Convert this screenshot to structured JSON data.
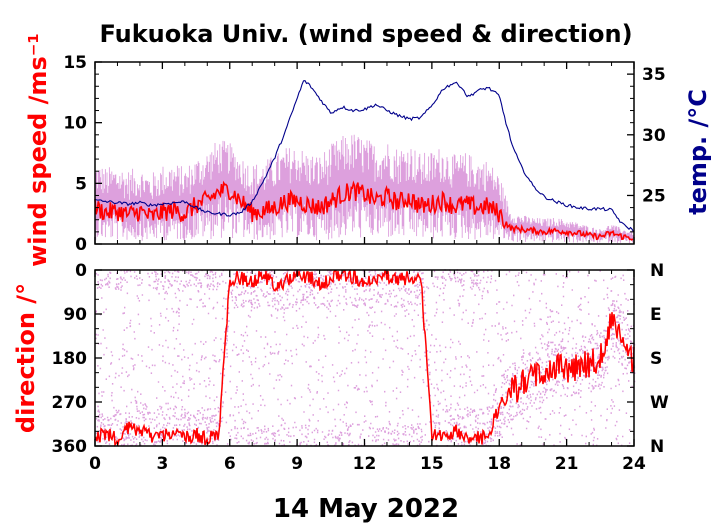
{
  "title": "Fukuoka Univ. (wind speed & direction)",
  "colors": {
    "speed": "#ff0000",
    "gust": "#dda0dd",
    "temp": "#00008b",
    "axis": "#000000"
  },
  "chart_data": [
    {
      "type": "line",
      "panel": "top",
      "ylabel": "wind speed /ms⁻¹",
      "y2label": "temp. /°C",
      "xlim": [
        0,
        24
      ],
      "ylim": [
        0,
        15
      ],
      "y2lim": [
        21,
        36
      ],
      "xticks": [
        0,
        3,
        6,
        9,
        12,
        15,
        18,
        21,
        24
      ],
      "yticks": [
        0,
        5,
        10,
        15
      ],
      "y2ticks": [
        25,
        30,
        35
      ],
      "series": [
        {
          "key": "wind_speed_mean",
          "x": [
            0,
            0.5,
            1,
            1.5,
            2,
            2.5,
            3,
            3.5,
            4,
            4.5,
            5,
            5.5,
            6,
            6.5,
            7,
            7.5,
            8,
            8.5,
            9,
            9.5,
            10,
            10.5,
            11,
            11.5,
            12,
            12.5,
            13,
            13.5,
            14,
            14.5,
            15,
            15.5,
            16,
            16.5,
            17,
            17.5,
            18,
            18.5,
            19,
            19.5,
            20,
            20.5,
            21,
            21.5,
            22,
            22.5,
            23,
            23.5,
            24
          ],
          "values": [
            3.0,
            2.6,
            2.7,
            2.4,
            2.7,
            2.2,
            2.6,
            2.8,
            2.5,
            3.2,
            3.6,
            4.3,
            4.5,
            3.5,
            2.6,
            2.7,
            3.0,
            3.5,
            3.6,
            3.2,
            3.0,
            3.5,
            4.1,
            4.4,
            4.1,
            3.6,
            3.9,
            3.4,
            3.8,
            3.1,
            3.3,
            3.6,
            3.1,
            3.3,
            3.0,
            3.1,
            2.5,
            1.3,
            1.2,
            1.1,
            1.0,
            1.1,
            1.0,
            0.9,
            0.7,
            0.6,
            0.9,
            0.6,
            0.5
          ]
        },
        {
          "key": "gust_upper",
          "x": [
            0,
            0.5,
            1,
            1.5,
            2,
            2.5,
            3,
            3.5,
            4,
            4.5,
            5,
            5.5,
            6,
            6.5,
            7,
            7.5,
            8,
            8.5,
            9,
            9.5,
            10,
            10.5,
            11,
            11.5,
            12,
            12.5,
            13,
            13.5,
            14,
            14.5,
            15,
            15.5,
            16,
            16.5,
            17,
            17.5,
            18,
            18.5,
            19,
            19.5,
            20,
            20.5,
            21,
            21.5,
            22,
            22.5,
            23,
            23.5,
            24
          ],
          "values": [
            6.5,
            6.0,
            6.2,
            5.8,
            6.0,
            5.5,
            6.2,
            6.4,
            6.0,
            6.8,
            7.4,
            8.3,
            8.0,
            7.0,
            6.3,
            6.5,
            7.0,
            7.6,
            7.8,
            7.2,
            7.0,
            7.8,
            8.5,
            8.8,
            8.4,
            7.9,
            8.2,
            7.6,
            8.0,
            7.1,
            7.3,
            7.8,
            7.0,
            7.2,
            6.8,
            6.6,
            5.5,
            2.6,
            2.3,
            2.1,
            2.0,
            2.1,
            1.9,
            1.7,
            1.4,
            1.2,
            1.6,
            1.2,
            1.0
          ]
        },
        {
          "key": "temperature",
          "axis": "y2",
          "x": [
            0,
            0.5,
            1,
            1.5,
            2,
            2.5,
            3,
            3.5,
            4,
            4.5,
            5,
            5.5,
            6,
            6.5,
            7,
            7.5,
            8,
            8.5,
            9,
            9.3,
            9.6,
            10,
            10.5,
            11,
            11.5,
            12,
            12.5,
            13,
            13.5,
            14,
            14.5,
            15,
            15.5,
            16,
            16.3,
            16.6,
            17,
            17.5,
            18,
            18.3,
            18.6,
            19,
            19.5,
            20,
            20.5,
            21,
            21.5,
            22,
            22.5,
            23,
            23.5,
            24
          ],
          "values": [
            24.6,
            24.5,
            24.4,
            24.3,
            24.4,
            24.2,
            24.3,
            24.4,
            24.5,
            24.0,
            23.6,
            23.5,
            23.4,
            23.6,
            24.5,
            26.2,
            28.1,
            30.4,
            33.0,
            34.5,
            34.0,
            33.0,
            31.8,
            32.3,
            32.0,
            32.1,
            32.5,
            32.0,
            31.6,
            31.3,
            31.4,
            32.4,
            33.8,
            34.3,
            34.0,
            33.1,
            33.6,
            33.9,
            33.2,
            31.0,
            29.0,
            27.3,
            25.8,
            24.9,
            24.5,
            24.2,
            24.0,
            23.9,
            23.9,
            23.8,
            22.6,
            22.1
          ]
        }
      ]
    },
    {
      "type": "scatter",
      "panel": "bottom",
      "ylabel": "direction /°",
      "xlabel": "14 May 2022",
      "xlim": [
        0,
        24
      ],
      "ylim": [
        360,
        0
      ],
      "xticks": [
        0,
        3,
        6,
        9,
        12,
        15,
        18,
        21,
        24
      ],
      "yticks": [
        0,
        90,
        180,
        270,
        360
      ],
      "y2ticks": [
        "N",
        "E",
        "S",
        "W",
        "N"
      ],
      "series": [
        {
          "key": "wind_direction_mean",
          "x": [
            0,
            0.5,
            1,
            1.5,
            2,
            2.5,
            3,
            3.5,
            4,
            4.5,
            5,
            5.5,
            6,
            6.5,
            7,
            7.5,
            8,
            8.5,
            9,
            9.5,
            10,
            10.5,
            11,
            11.5,
            12,
            12.5,
            13,
            13.5,
            14,
            14.5,
            15,
            15.5,
            16,
            16.5,
            17,
            17.5,
            18,
            18.5,
            19,
            19.5,
            20,
            20.5,
            21,
            21.5,
            22,
            22.5,
            23,
            23.5,
            24
          ],
          "values": [
            340,
            335,
            345,
            320,
            330,
            338,
            340,
            333,
            342,
            336,
            345,
            340,
            20,
            15,
            25,
            10,
            30,
            22,
            15,
            12,
            30,
            20,
            10,
            15,
            25,
            18,
            12,
            20,
            15,
            10,
            335,
            340,
            330,
            338,
            345,
            340,
            280,
            250,
            235,
            220,
            210,
            200,
            205,
            195,
            190,
            185,
            100,
            140,
            185
          ]
        }
      ]
    }
  ],
  "xtick_labels": [
    "0",
    "3",
    "6",
    "9",
    "12",
    "15",
    "18",
    "21",
    "24"
  ]
}
